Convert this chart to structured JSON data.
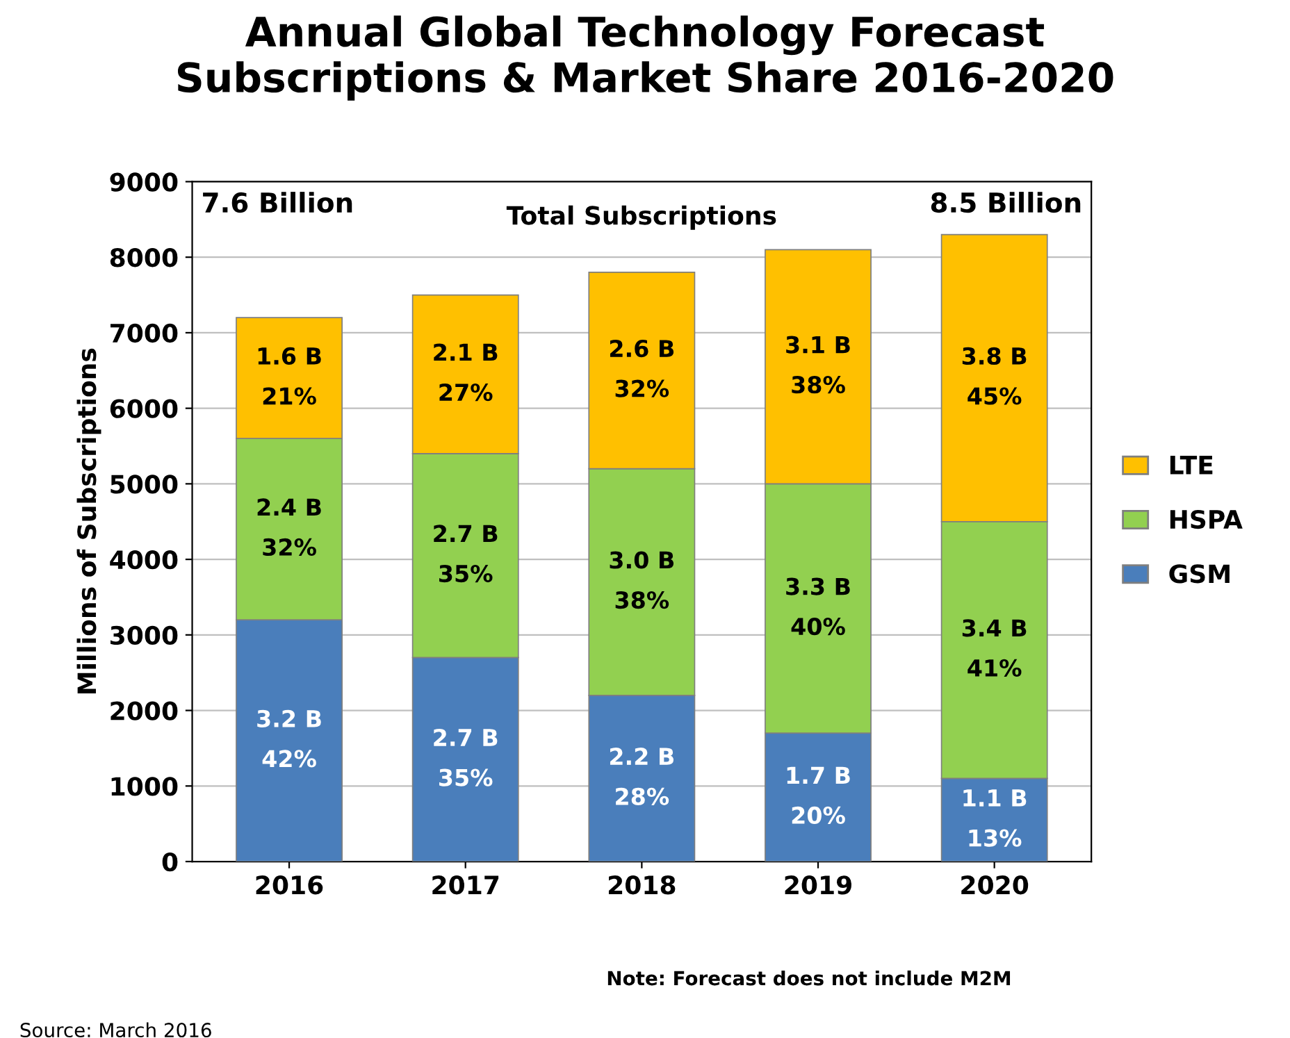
{
  "chart_data": {
    "type": "bar",
    "title": "Annual Global Technology Forecast\nSubscriptions & Market Share 2016-2020",
    "ylabel": "Millions of Subscriptions",
    "categories": [
      "2016",
      "2017",
      "2018",
      "2019",
      "2020"
    ],
    "stacked": true,
    "series": [
      {
        "name": "GSM",
        "color": "#4a7ebb",
        "values": [
          3200,
          2700,
          2200,
          1700,
          1100
        ]
      },
      {
        "name": "HSPA",
        "color": "#92d050",
        "values": [
          2400,
          2700,
          3000,
          3300,
          3400
        ]
      },
      {
        "name": "LTE",
        "color": "#ffc000",
        "values": [
          1600,
          2100,
          2600,
          3100,
          3800
        ]
      }
    ],
    "ylim": [
      0,
      9000
    ],
    "yticks": [
      0,
      1000,
      2000,
      3000,
      4000,
      5000,
      6000,
      7000,
      8000,
      9000
    ],
    "grid": "y",
    "legend": "right",
    "annotations": [
      "7.6 Billion",
      "Total Subscriptions",
      "8.5 Billion",
      "Note: Forecast does not include M2M",
      "Source: March 2016",
      "3.2 B\n42%",
      "2.7 B\n35%",
      "2.2 B\n28%",
      "1.7 B\n20%",
      "1.1 B\n13%",
      "2.4 B\n32%",
      "2.7 B\n35%",
      "3.0 B\n38%",
      "3.3 B\n40%",
      "3.4 B\n41%",
      "1.6 B\n21%",
      "2.1 B\n27%",
      "2.6 B\n32%",
      "3.1 B\n38%",
      "3.8 B\n45%"
    ]
  }
}
